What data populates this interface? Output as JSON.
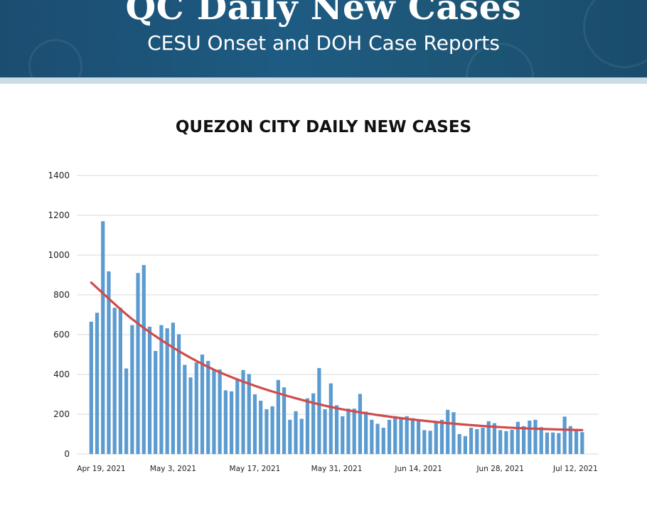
{
  "header": {
    "title": "QC Daily New Cases",
    "subtitle": "CESU Onset and DOH Case Reports"
  },
  "colors": {
    "banner": "#1d5a80",
    "bar": "#5b9bd0",
    "trend": "#d04b4b",
    "grid": "#d9d9d9"
  },
  "chart_data": {
    "type": "bar",
    "title": "QUEZON CITY DAILY NEW CASES",
    "xlabel": "",
    "ylabel": "",
    "ylim": [
      0,
      1400
    ],
    "yticks": [
      0,
      200,
      400,
      600,
      800,
      1000,
      1200,
      1400
    ],
    "grid": true,
    "legend": "none",
    "x_tick_labels": [
      "Apr 19, 2021",
      "May 3, 2021",
      "May 17, 2021",
      "May 31, 2021",
      "Jun 14, 2021",
      "Jun 28, 2021",
      "Jul 12, 2021"
    ],
    "x_tick_index": [
      0,
      14,
      28,
      42,
      56,
      70,
      84
    ],
    "x_start": "2021-04-19",
    "x_end": "2021-07-12",
    "values": [
      665,
      710,
      1170,
      918,
      735,
      735,
      430,
      648,
      910,
      950,
      640,
      518,
      648,
      632,
      660,
      602,
      448,
      385,
      460,
      500,
      468,
      425,
      425,
      320,
      315,
      375,
      422,
      402,
      300,
      268,
      225,
      240,
      372,
      335,
      172,
      215,
      177,
      280,
      305,
      432,
      225,
      355,
      245,
      190,
      228,
      228,
      302,
      213,
      172,
      152,
      132,
      172,
      190,
      185,
      190,
      180,
      172,
      120,
      117,
      165,
      172,
      222,
      210,
      100,
      90,
      132,
      125,
      132,
      165,
      155,
      120,
      115,
      122,
      162,
      140,
      168,
      172,
      135,
      108,
      108,
      105,
      188,
      140,
      125,
      110
    ],
    "trend": {
      "name": "Trend",
      "x": [
        "2021-04-19",
        "2021-04-26",
        "2021-05-03",
        "2021-05-10",
        "2021-05-17",
        "2021-05-24",
        "2021-05-31",
        "2021-06-07",
        "2021-06-14",
        "2021-06-21",
        "2021-06-28",
        "2021-07-05",
        "2021-07-12"
      ],
      "values": [
        862,
        678,
        535,
        424,
        343,
        280,
        230,
        196,
        170,
        150,
        135,
        126,
        120
      ]
    }
  }
}
